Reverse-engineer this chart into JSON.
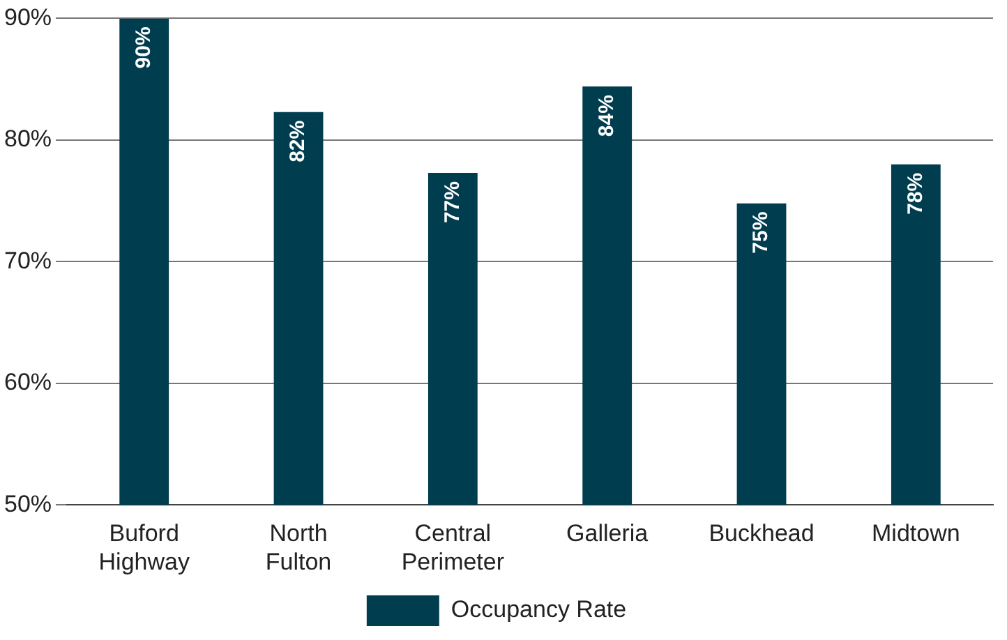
{
  "chart_data": {
    "type": "bar",
    "categories": [
      "Buford Highway",
      "North Fulton",
      "Central Perimeter",
      "Galleria",
      "Buckhead",
      "Midtown"
    ],
    "series": [
      {
        "name": "Occupancy Rate",
        "color": "#003d4f",
        "values": [
          90,
          82.3,
          77.3,
          84.4,
          74.8,
          78
        ],
        "value_labels": [
          "90%",
          "82%",
          "77%",
          "84%",
          "75%",
          "78%"
        ]
      }
    ],
    "ylim": [
      50,
      90
    ],
    "yticks": [
      {
        "value": 50,
        "label": "50%"
      },
      {
        "value": 60,
        "label": "60%"
      },
      {
        "value": 70,
        "label": "70%"
      },
      {
        "value": 80,
        "label": "80%"
      },
      {
        "value": 90,
        "label": "90%"
      }
    ],
    "grid": "y",
    "legend": "bottom"
  }
}
